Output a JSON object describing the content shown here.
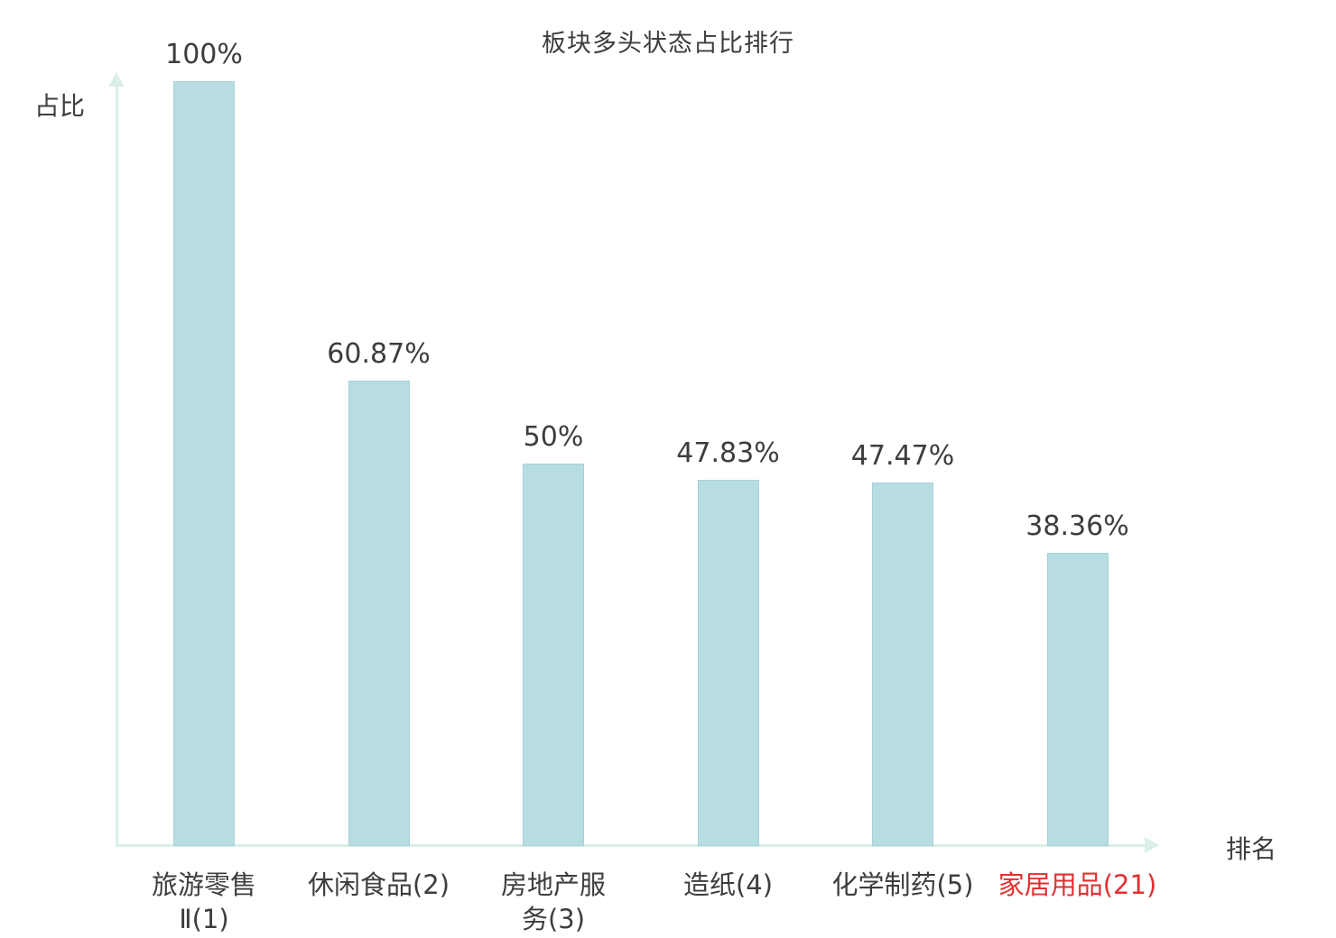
{
  "chart_data": {
    "type": "bar",
    "title": "板块多头状态占比排行",
    "xlabel": "排名",
    "ylabel": "占比",
    "ylim": [
      0,
      100
    ],
    "grid": false,
    "legend_position": "none",
    "categories": [
      "旅游零售Ⅱ(1)",
      "休闲食品(2)",
      "房地产服务(3)",
      "造纸(4)",
      "化学制药(5)",
      "家居用品(21)"
    ],
    "category_label_lines": [
      [
        "旅游零售",
        "Ⅱ(1)"
      ],
      [
        "休闲食品(2)"
      ],
      [
        "房地产服",
        "务(3)"
      ],
      [
        "造纸(4)"
      ],
      [
        "化学制药(5)"
      ],
      [
        "家居用品(21)"
      ]
    ],
    "values": [
      100,
      60.87,
      50,
      47.83,
      47.47,
      38.36
    ],
    "value_labels": [
      "100%",
      "60.87%",
      "50%",
      "47.83%",
      "47.47%",
      "38.36%"
    ],
    "highlight_index": 5,
    "colors": {
      "bar_fill": "#b7dde2",
      "bar_border": "#a6d2d8",
      "axis": "#d9efe7",
      "text": "#3d3d3d",
      "highlight_text": "#e03131"
    }
  }
}
